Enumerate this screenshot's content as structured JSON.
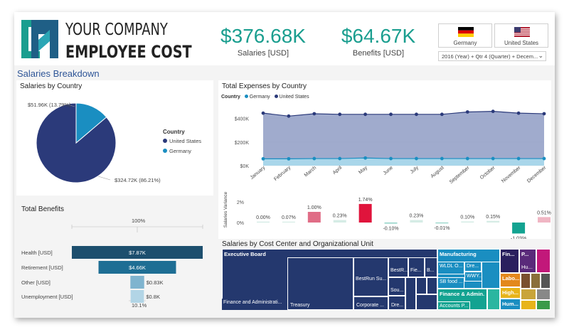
{
  "header": {
    "company_line1": "YOUR COMPANY",
    "company_line2": "EMPLOYEE COST",
    "kpis": [
      {
        "value": "$376.68K",
        "label": "Salaries [USD]"
      },
      {
        "value": "$64.67K",
        "label": "Benefits [USD]"
      }
    ],
    "country_buttons": [
      {
        "name": "Germany",
        "flag": "germany-flag-icon"
      },
      {
        "name": "United States",
        "flag": "us-flag-icon"
      }
    ],
    "filter_value": "2016 (Year) + Qtr 4 (Quarter) + Decem...",
    "colors": {
      "accent": "#1a9e8f",
      "us": "#2b3a7a",
      "germany": "#1a8ec1"
    }
  },
  "section_title": "Salaries Breakdown",
  "salaries_by_country": {
    "title": "Salaries by Country",
    "legend_title": "Country",
    "legend": [
      "United States",
      "Germany"
    ],
    "labels": {
      "germany": "$51.96K (13.79%)",
      "us": "$324.72K (86.21%)"
    },
    "chart_data": {
      "type": "pie",
      "slices": [
        {
          "name": "United States",
          "value": 324.72,
          "percent": 86.21
        },
        {
          "name": "Germany",
          "value": 51.96,
          "percent": 13.79
        }
      ]
    }
  },
  "total_benefits": {
    "title": "Total Benefits",
    "top_label": "100%",
    "bottom_label": "10.1%",
    "chart_data": {
      "type": "bar",
      "categories": [
        "Health [USD]",
        "Retirement [USD]",
        "Other [USD]",
        "Unemployment [USD]"
      ],
      "values": [
        7.87,
        4.66,
        0.83,
        0.8
      ],
      "value_labels": [
        "$7.87K",
        "$4.66K",
        "$0.83K",
        "$0.8K"
      ],
      "colors": [
        "#1d4f6e",
        "#1e6e94",
        "#7fb4cf",
        "#b2d5e6"
      ]
    }
  },
  "total_expenses": {
    "title": "Total Expenses by Country",
    "legend_title": "Country",
    "legend": [
      "Germany",
      "United States"
    ],
    "y_ticks": [
      "$400K",
      "$200K",
      "$0K"
    ],
    "chart_data": {
      "type": "area",
      "categories": [
        "January",
        "February",
        "March",
        "April",
        "May",
        "June",
        "July",
        "August",
        "September",
        "October",
        "November",
        "December"
      ],
      "series": [
        {
          "name": "United States",
          "values": [
            445,
            420,
            440,
            435,
            435,
            435,
            435,
            435,
            455,
            460,
            445,
            440
          ]
        },
        {
          "name": "Germany",
          "values": [
            58,
            58,
            60,
            60,
            65,
            60,
            60,
            60,
            60,
            60,
            60,
            60
          ]
        }
      ],
      "ylim": [
        0,
        470
      ]
    }
  },
  "variance": {
    "ylabel": "Salaries Variance",
    "y_ticks": [
      "2%",
      "0%"
    ],
    "chart_data": {
      "type": "bar",
      "categories": [
        "January",
        "February",
        "March",
        "April",
        "May",
        "June",
        "July",
        "August",
        "September",
        "October",
        "November",
        "December"
      ],
      "values": [
        0.0,
        0.07,
        1.0,
        0.23,
        1.74,
        -0.1,
        0.23,
        -0.01,
        0.1,
        0.15,
        -1.03,
        0.51
      ],
      "value_labels": [
        "0.00%",
        "0.07%",
        "1.00%",
        "0.23%",
        "1.74%",
        "-0.10%",
        "0.23%",
        "-0.01%",
        "0.10%",
        "0.15%",
        "-1.03%",
        "0.51%"
      ]
    }
  },
  "treemap": {
    "title": "Salaries by Cost Center and Organizational Unit",
    "cells": [
      {
        "label": "Executive Board",
        "bold": true,
        "color": "#24386e",
        "x": 0,
        "y": 0,
        "w": 303,
        "h": 86
      },
      {
        "label": "Finance and Administrati...",
        "color": "#24386e",
        "x": 0,
        "y": 86,
        "w": 92,
        "h": 0
      },
      {
        "label": "Treasury",
        "color": "#24386e",
        "x": 92,
        "y": 86,
        "w": 0,
        "h": 0
      },
      {
        "label": "BestRun Su...",
        "color": "#24386e",
        "x": 185,
        "y": 0,
        "w": 0,
        "h": 0
      },
      {
        "label": "Corporate ...",
        "color": "#24386e",
        "x": 185,
        "y": 86,
        "w": 0,
        "h": 0
      },
      {
        "label": "BestR...",
        "color": "#24386e",
        "x": 0,
        "y": 0,
        "w": 0,
        "h": 0
      },
      {
        "label": "Fie...",
        "color": "#24386e",
        "x": 0,
        "y": 0,
        "w": 0,
        "h": 0
      },
      {
        "label": "B...",
        "color": "#24386e",
        "x": 0,
        "y": 0,
        "w": 0,
        "h": 0
      },
      {
        "label": "Sou...",
        "color": "#24386e",
        "x": 0,
        "y": 0,
        "w": 0,
        "h": 0
      },
      {
        "label": "Dre...",
        "color": "#24386e",
        "x": 0,
        "y": 0,
        "w": 0,
        "h": 0
      },
      {
        "label": "Manufacturing",
        "bold": true,
        "color": "#1a8ec1",
        "x": 0,
        "y": 0,
        "w": 0,
        "h": 0
      },
      {
        "label": "WLDL O...",
        "color": "#1a8ec1",
        "x": 0,
        "y": 0,
        "w": 0,
        "h": 0
      },
      {
        "label": "Dre...",
        "color": "#1a8ec1",
        "x": 0,
        "y": 0,
        "w": 0,
        "h": 0
      },
      {
        "label": "WWY...",
        "color": "#1a8ec1",
        "x": 0,
        "y": 0,
        "w": 0,
        "h": 0
      },
      {
        "label": "SB food ...",
        "color": "#1a8ec1",
        "x": 0,
        "y": 0,
        "w": 0,
        "h": 0
      },
      {
        "label": "Finance & Admin.",
        "bold": true,
        "color": "#13a391",
        "x": 0,
        "y": 0,
        "w": 0,
        "h": 0
      },
      {
        "label": "Accounts P...",
        "color": "#13a391",
        "x": 0,
        "y": 0,
        "w": 0,
        "h": 0
      },
      {
        "label": "Fin...",
        "bold": true,
        "color": "#2a1f5e",
        "x": 0,
        "y": 0,
        "w": 0,
        "h": 0
      },
      {
        "label": "P...",
        "bold": true,
        "color": "#5a2a7a",
        "x": 0,
        "y": 0,
        "w": 0,
        "h": 0
      },
      {
        "label": "Hu...",
        "color": "#5a2a7a",
        "x": 0,
        "y": 0,
        "w": 0,
        "h": 0
      },
      {
        "label": "Labo...",
        "bold": true,
        "color": "#e3881c",
        "x": 0,
        "y": 0,
        "w": 0,
        "h": 0
      },
      {
        "label": "High...",
        "bold": true,
        "color": "#e8b41a",
        "x": 0,
        "y": 0,
        "w": 0,
        "h": 0
      },
      {
        "label": "Hum...",
        "bold": true,
        "color": "#1a8ec1",
        "x": 0,
        "y": 0,
        "w": 0,
        "h": 0
      }
    ]
  }
}
